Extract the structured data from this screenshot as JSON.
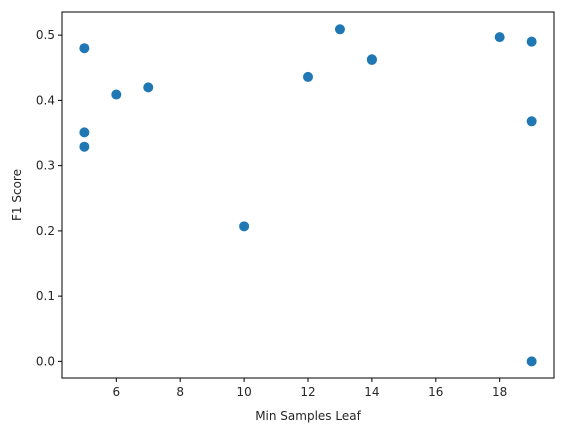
{
  "chart_data": {
    "type": "scatter",
    "xlabel": "Min Samples Leaf",
    "ylabel": "F1 Score",
    "xlim": [
      4.3,
      19.7
    ],
    "ylim": [
      -0.0255,
      0.5355
    ],
    "xticks": [
      6,
      8,
      10,
      12,
      14,
      16,
      18
    ],
    "xtick_labels": [
      "6",
      "8",
      "10",
      "12",
      "14",
      "16",
      "18"
    ],
    "yticks": [
      0.0,
      0.1,
      0.2,
      0.3,
      0.4,
      0.5
    ],
    "ytick_labels": [
      "0.0",
      "0.1",
      "0.2",
      "0.3",
      "0.4",
      "0.5"
    ],
    "marker_color": "#1f77b4",
    "grid": false,
    "points": [
      {
        "x": 5,
        "y": 0.48
      },
      {
        "x": 5,
        "y": 0.351
      },
      {
        "x": 5,
        "y": 0.329
      },
      {
        "x": 6,
        "y": 0.409
      },
      {
        "x": 7,
        "y": 0.42
      },
      {
        "x": 10,
        "y": 0.207
      },
      {
        "x": 12,
        "y": 0.436
      },
      {
        "x": 13,
        "y": 0.509
      },
      {
        "x": 14,
        "y": 0.462
      },
      {
        "x": 14,
        "y": 0.463
      },
      {
        "x": 18,
        "y": 0.497
      },
      {
        "x": 19,
        "y": 0.49
      },
      {
        "x": 19,
        "y": 0.368
      },
      {
        "x": 19,
        "y": 0.0
      }
    ]
  }
}
